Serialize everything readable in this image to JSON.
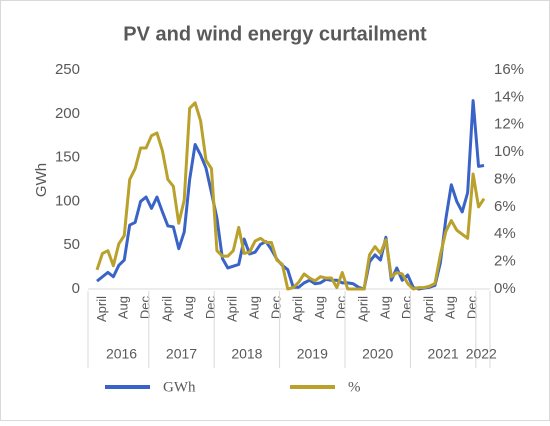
{
  "chart_data": {
    "type": "line",
    "title": "PV and wind energy curtailment",
    "y_label": "GWh",
    "categories": [
      null,
      "April",
      null,
      null,
      null,
      "Aug",
      null,
      null,
      null,
      "Dec",
      null,
      null,
      null,
      "April",
      null,
      null,
      null,
      "Aug",
      null,
      null,
      null,
      "Dec",
      null,
      null,
      null,
      "April",
      null,
      null,
      null,
      "Aug",
      null,
      null,
      null,
      "Dec",
      null,
      null,
      null,
      "April",
      null,
      null,
      null,
      "Aug",
      null,
      null,
      null,
      "Dec",
      null,
      null,
      null,
      "April",
      null,
      null,
      null,
      "Aug",
      null,
      null,
      null,
      "Dec",
      null,
      null,
      null,
      "April",
      null,
      null,
      null,
      "Aug",
      null,
      null,
      null,
      "Dec",
      null,
      null
    ],
    "category_groups": [
      "2016",
      null,
      null,
      null,
      null,
      null,
      null,
      null,
      null,
      null,
      "2017",
      null,
      null,
      null,
      null,
      null,
      null,
      null,
      null,
      null,
      null,
      null,
      "2018",
      null,
      null,
      null,
      null,
      null,
      null,
      null,
      null,
      null,
      null,
      null,
      "2019",
      null,
      null,
      null,
      null,
      null,
      null,
      null,
      null,
      null,
      null,
      null,
      "2020",
      null,
      null,
      null,
      null,
      null,
      null,
      null,
      null,
      null,
      null,
      null,
      "2021",
      null,
      null,
      null,
      null,
      null,
      null,
      null,
      null,
      null,
      null,
      null,
      "2022",
      null
    ],
    "series": [
      {
        "name": "GWh",
        "color": "#3a63c8",
        "values": [
          9,
          14,
          19,
          14,
          27,
          33,
          73,
          76,
          100,
          105,
          92,
          105,
          88,
          72,
          71,
          46,
          65,
          125,
          165,
          153,
          138,
          110,
          81,
          35,
          24,
          26,
          28,
          57,
          40,
          42,
          51,
          54,
          45,
          34,
          27,
          22,
          2,
          2,
          7,
          10,
          6,
          7,
          11,
          10,
          10,
          7,
          7,
          6,
          2,
          0,
          31,
          39,
          33,
          59,
          10,
          24,
          10,
          16,
          2,
          0,
          1,
          2,
          4,
          30,
          80,
          119,
          100,
          88,
          110,
          215,
          140,
          141
        ]
      },
      {
        "name": "%",
        "color": "#b9a12c",
        "axis": "y2",
        "values": [
          1.4,
          2.6,
          2.8,
          1.7,
          3.3,
          3.9,
          8.0,
          8.8,
          10.3,
          10.3,
          11.2,
          11.4,
          10.1,
          8.0,
          7.5,
          4.8,
          6.5,
          13.2,
          13.6,
          12.3,
          9.4,
          8.8,
          2.8,
          2.4,
          2.4,
          2.8,
          4.5,
          2.6,
          2.7,
          3.5,
          3.7,
          3.4,
          3.4,
          2.1,
          1.8,
          0,
          0.1,
          0.5,
          1.1,
          0.8,
          0.6,
          0.9,
          0.8,
          0.8,
          0.1,
          1.2,
          0,
          0,
          0,
          0,
          2.5,
          3.1,
          2.6,
          3.6,
          0.9,
          1.2,
          1.1,
          0.4,
          0,
          0.1,
          0.1,
          0.2,
          0.4,
          2.5,
          4.2,
          5.0,
          4.3,
          4.0,
          3.7,
          8.4,
          6.0,
          6.6
        ]
      }
    ],
    "ylim": [
      0,
      250
    ],
    "yticks": [
      0,
      50,
      100,
      150,
      200,
      250
    ],
    "y2lim": [
      0,
      16
    ],
    "y2ticks": [
      {
        "value": 0,
        "label": "0%"
      },
      {
        "value": 2,
        "label": "2%"
      },
      {
        "value": 4,
        "label": "4%"
      },
      {
        "value": 6,
        "label": "6%"
      },
      {
        "value": 8,
        "label": "8%"
      },
      {
        "value": 10,
        "label": "10%"
      },
      {
        "value": 12,
        "label": "12%"
      },
      {
        "value": 14,
        "label": "14%"
      },
      {
        "value": 16,
        "label": "16%"
      }
    ],
    "grid": false,
    "legend": "bottom"
  }
}
